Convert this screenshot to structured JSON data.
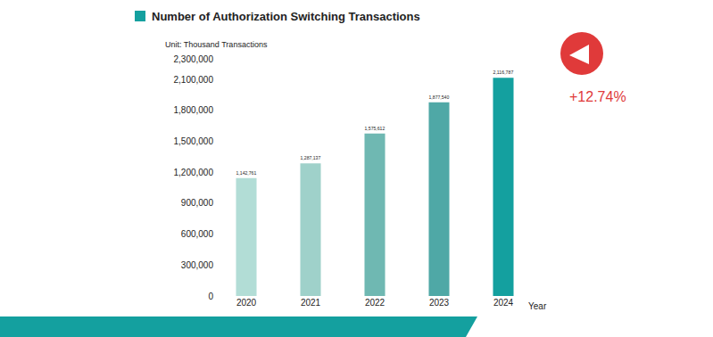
{
  "chart_data": {
    "type": "bar",
    "title": "Number of Authorization Switching Transactions",
    "subtitle": "Unit: Thousand Transactions",
    "x_label": "Year",
    "annotation": "+12.74%",
    "categories": [
      "2020",
      "2021",
      "2022",
      "2023",
      "2024"
    ],
    "values": [
      1142761,
      1287137,
      1575612,
      1877540,
      2116787
    ],
    "value_labels": [
      "1,142,761",
      "1,287,137",
      "1,575,612",
      "1,877,540",
      "2,116,787"
    ],
    "colors": [
      "#b2ddd6",
      "#9fd1ca",
      "#6fb8b2",
      "#4fa8a6",
      "#14a09f"
    ],
    "ylim": [
      0,
      2300000
    ],
    "yticks": [
      0,
      {
        "value": 300000,
        "label": "300,000"
      },
      {
        "value": 600000,
        "label": "600,000"
      },
      {
        "value": 900000,
        "label": "900,000"
      },
      {
        "value": 1200000,
        "label": "1,200,000"
      },
      {
        "value": 1500000,
        "label": "1,500,000"
      },
      {
        "value": 1800000,
        "label": "1,800,000"
      },
      {
        "value": 2100000,
        "label": "2,100,000"
      },
      {
        "value": 2300000,
        "label": "2,300,000"
      }
    ],
    "grid": false,
    "data_labels": true
  }
}
